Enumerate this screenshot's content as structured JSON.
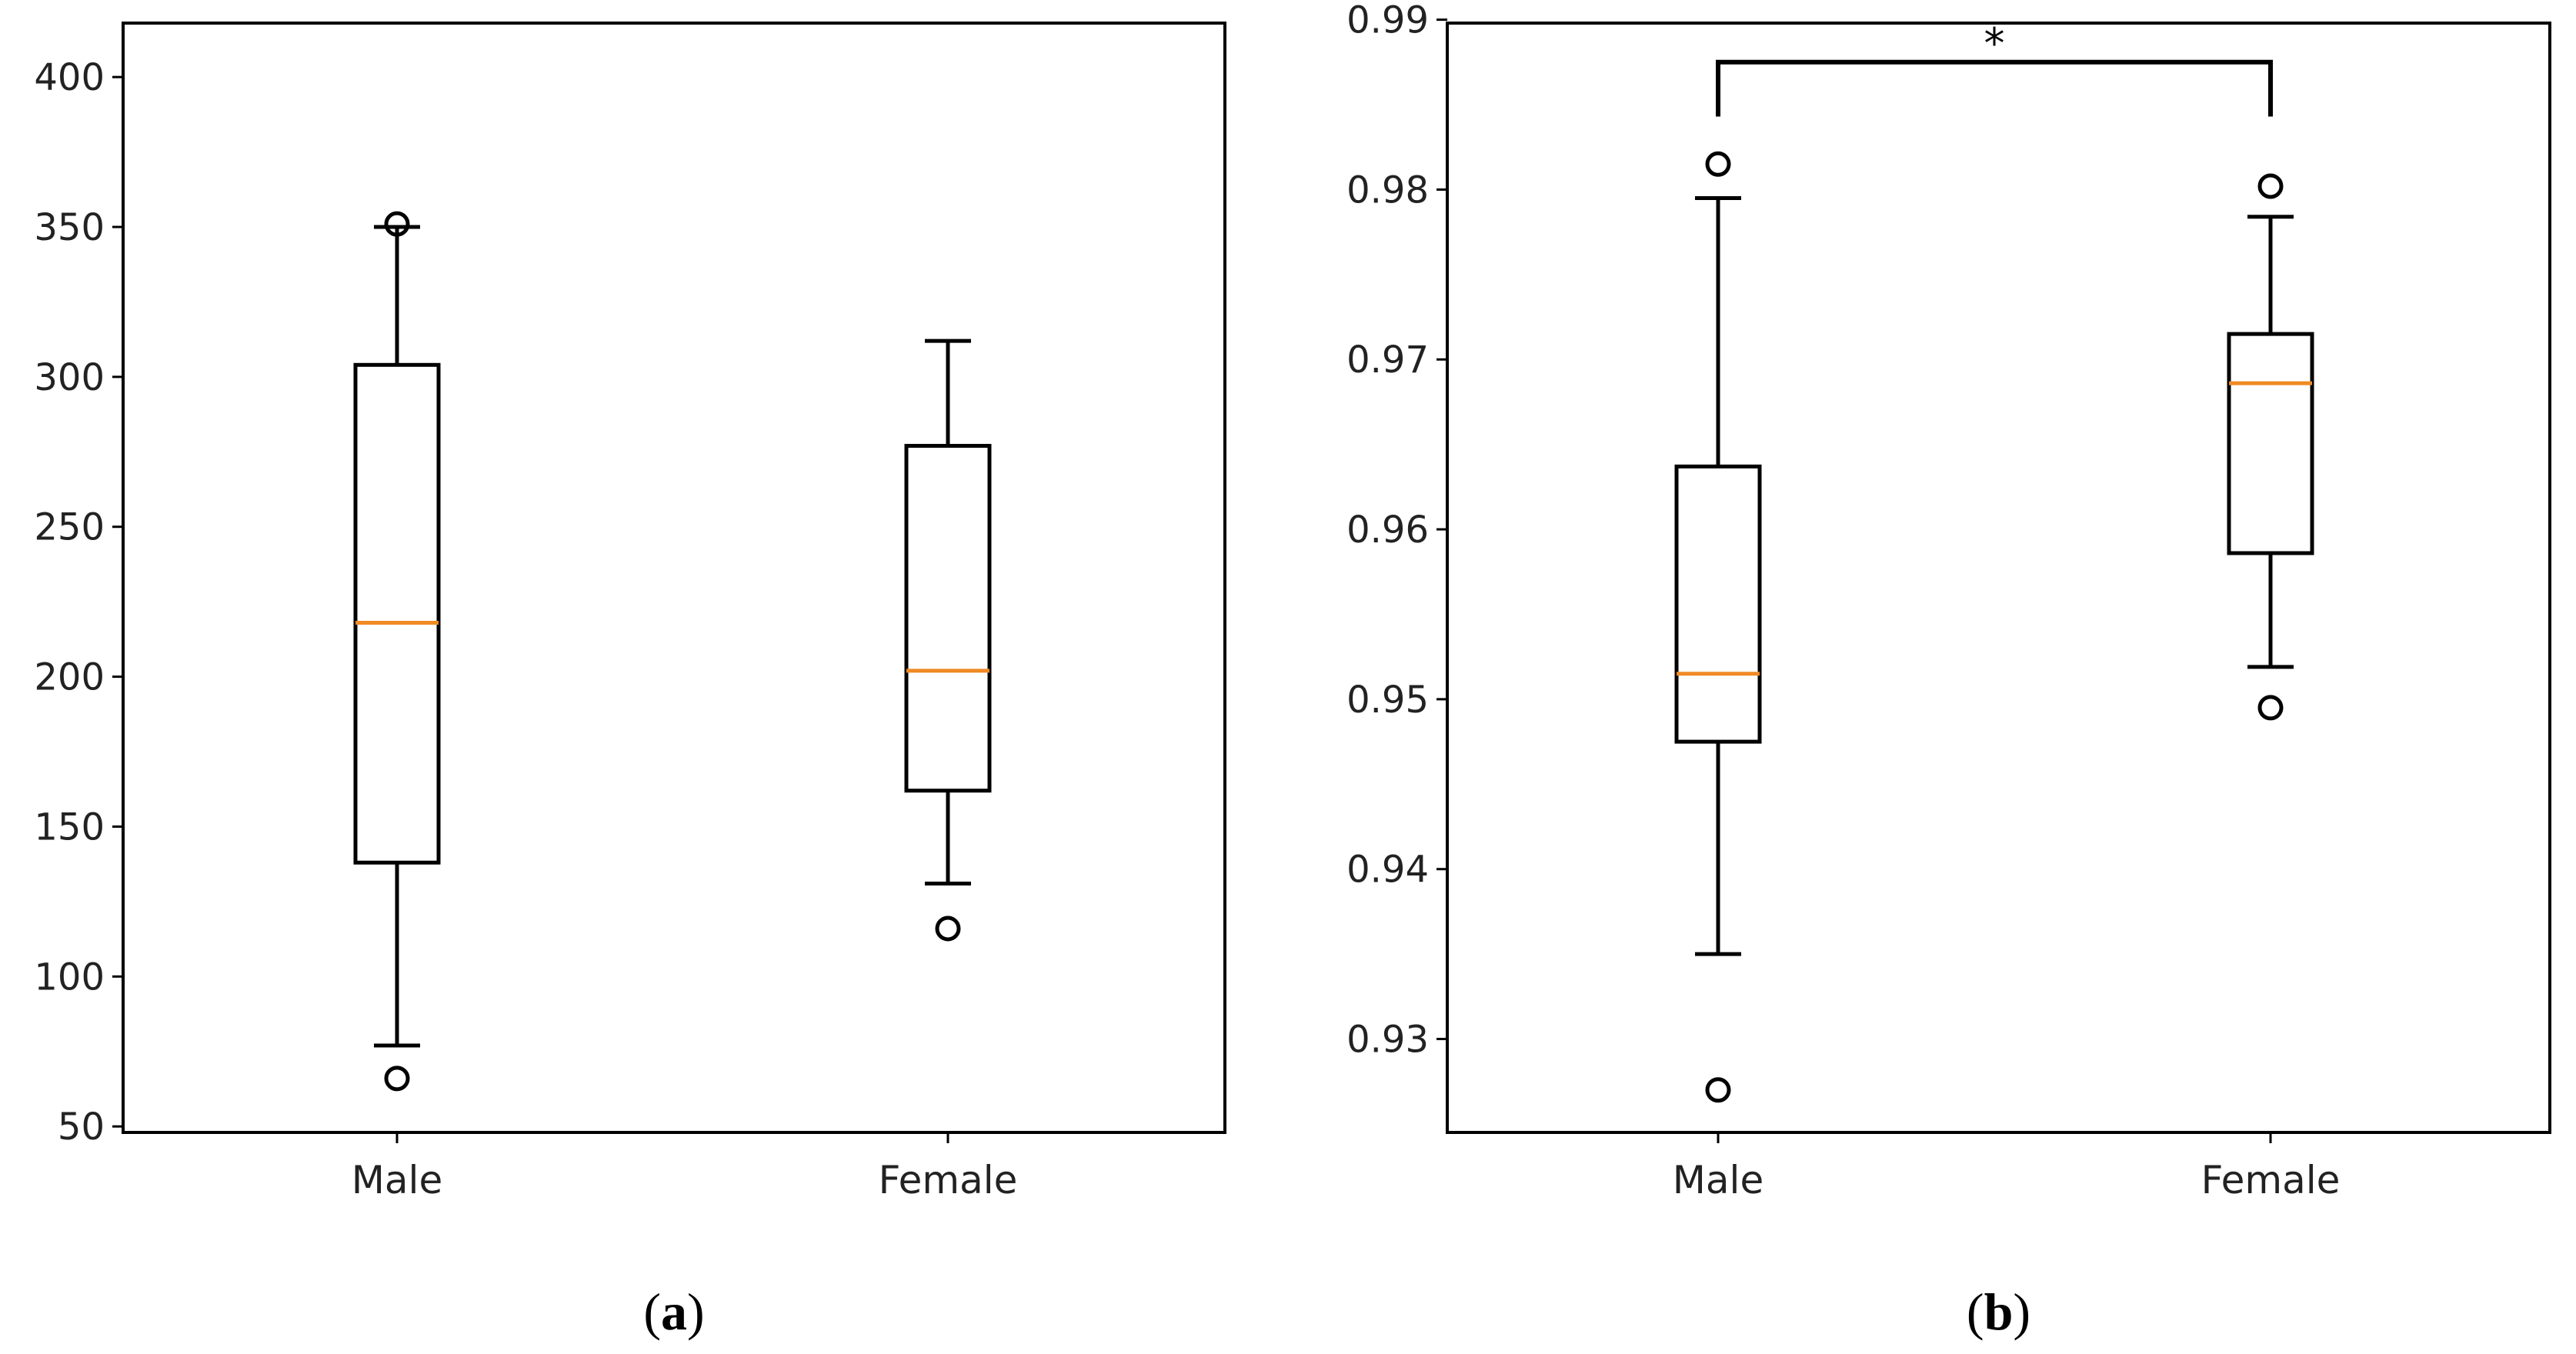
{
  "chart_data": [
    {
      "type": "box",
      "panel_label": "a",
      "categories": [
        "Male",
        "Female"
      ],
      "yticks": [
        50,
        100,
        150,
        200,
        250,
        300,
        350,
        400
      ],
      "ylim": [
        48,
        418
      ],
      "boxes": [
        {
          "category": "Male",
          "whisker_low": 77,
          "q1": 138,
          "median": 218,
          "q3": 304,
          "whisker_high": 350,
          "fliers": [
            66,
            351
          ]
        },
        {
          "category": "Female",
          "whisker_low": 131,
          "q1": 162,
          "median": 202,
          "q3": 277,
          "whisker_high": 312,
          "fliers": [
            116
          ]
        }
      ],
      "median_color": "#f08a24",
      "significance": null
    },
    {
      "type": "box",
      "panel_label": "b",
      "categories": [
        "Male",
        "Female"
      ],
      "yticks": [
        0.93,
        0.94,
        0.95,
        0.96,
        0.97,
        0.98,
        0.99
      ],
      "ytick_labels": [
        "0.93",
        "0.94",
        "0.95",
        "0.96",
        "0.97",
        "0.98",
        "0.99"
      ],
      "ylim": [
        0.9245,
        0.9898
      ],
      "boxes": [
        {
          "category": "Male",
          "whisker_low": 0.935,
          "q1": 0.9475,
          "median": 0.9515,
          "q3": 0.9637,
          "whisker_high": 0.9795,
          "fliers": [
            0.927,
            0.9815
          ]
        },
        {
          "category": "Female",
          "whisker_low": 0.9519,
          "q1": 0.9586,
          "median": 0.9686,
          "q3": 0.9715,
          "whisker_high": 0.9784,
          "fliers": [
            0.9495,
            0.9802
          ]
        }
      ],
      "median_color": "#f08a24",
      "significance": {
        "from": "Male",
        "to": "Female",
        "label": "*",
        "y": 0.9875,
        "drop": 0.9843
      }
    }
  ]
}
